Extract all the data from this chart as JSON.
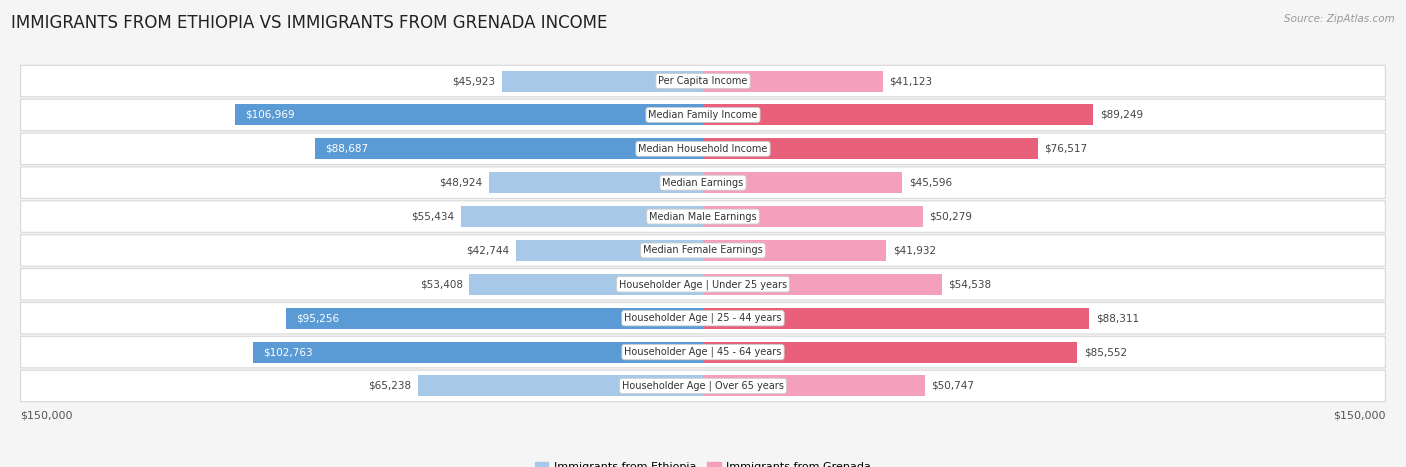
{
  "title": "IMMIGRANTS FROM ETHIOPIA VS IMMIGRANTS FROM GRENADA INCOME",
  "source": "Source: ZipAtlas.com",
  "categories": [
    "Per Capita Income",
    "Median Family Income",
    "Median Household Income",
    "Median Earnings",
    "Median Male Earnings",
    "Median Female Earnings",
    "Householder Age | Under 25 years",
    "Householder Age | 25 - 44 years",
    "Householder Age | 45 - 64 years",
    "Householder Age | Over 65 years"
  ],
  "ethiopia_values": [
    45923,
    106969,
    88687,
    48924,
    55434,
    42744,
    53408,
    95256,
    102763,
    65238
  ],
  "grenada_values": [
    41123,
    89249,
    76517,
    45596,
    50279,
    41932,
    54538,
    88311,
    85552,
    50747
  ],
  "ethiopia_color_light": "#a8c8e8",
  "ethiopia_color_dark": "#5b9bd5",
  "grenada_color_light": "#f4a0bc",
  "grenada_color_dark": "#e8607a",
  "max_value": 150000,
  "background_color": "#f5f5f5",
  "row_bg_color": "#ffffff",
  "row_border_color": "#d8d8d8",
  "label_bg_color": "#ffffff",
  "label_border_color": "#cccccc",
  "title_fontsize": 12,
  "value_fontsize": 7.5,
  "cat_fontsize": 7,
  "tick_label": "$150,000",
  "ethiopia_label": "Immigrants from Ethiopia",
  "grenada_label": "Immigrants from Grenada",
  "ethiopia_dark_threshold": 75000,
  "grenada_dark_threshold": 75000
}
